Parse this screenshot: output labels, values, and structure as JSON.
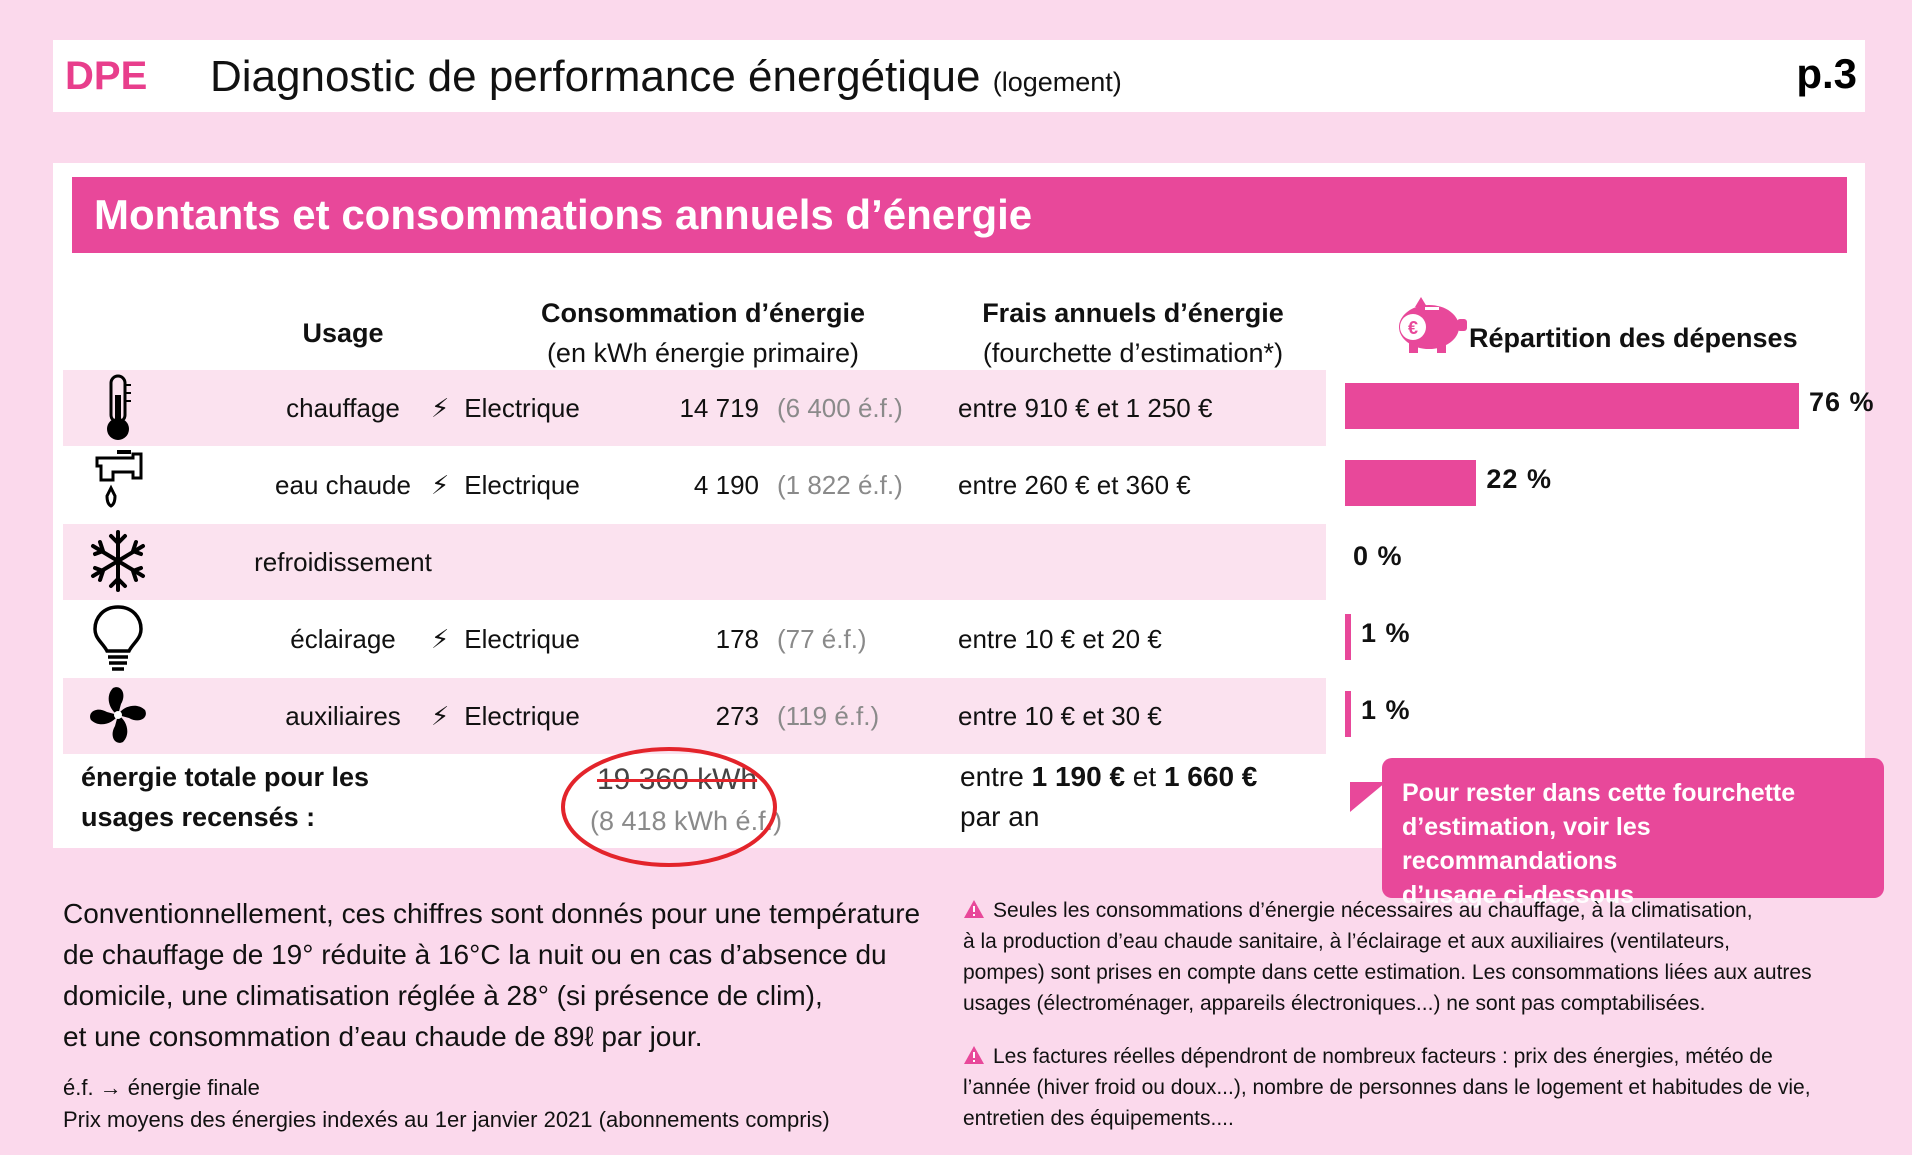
{
  "header": {
    "code": "DPE",
    "title": "Diagnostic de performance énergétique",
    "subtitle": "(logement)",
    "page": "p.3"
  },
  "banner": {
    "title": "Montants et consommations annuels d’énergie"
  },
  "columns": {
    "usage": "Usage",
    "conso_title": "Consommation d’énergie",
    "conso_sub": "(en kWh énergie primaire)",
    "frais_title": "Frais annuels d’énergie",
    "frais_sub": "(fourchette d’estimation*)",
    "repartition": "Répartition des dépenses"
  },
  "rows": [
    {
      "icon": "thermometer-icon",
      "usage": "chauffage",
      "energy": "Electrique",
      "kwh": "14 719",
      "ef": "(6 400 é.f.)",
      "frais": "entre 910 € et 1 250 €",
      "pct_label": "76 %",
      "pct": 76
    },
    {
      "icon": "faucet-icon",
      "usage": "eau chaude",
      "energy": "Electrique",
      "kwh": "4 190",
      "ef": "(1 822 é.f.)",
      "frais": "entre 260 € et 360 €",
      "pct_label": "22 %",
      "pct": 22
    },
    {
      "icon": "snowflake-icon",
      "usage": "refroidissement",
      "energy": "",
      "kwh": "",
      "ef": "",
      "frais": "",
      "pct_label": "0 %",
      "pct": 0
    },
    {
      "icon": "lightbulb-icon",
      "usage": "éclairage",
      "energy": "Electrique",
      "kwh": "178",
      "ef": "(77 é.f.)",
      "frais": "entre 10 € et 20 €",
      "pct_label": "1 %",
      "pct": 1
    },
    {
      "icon": "fan-icon",
      "usage": "auxiliaires",
      "energy": "Electrique",
      "kwh": "273",
      "ef": "(119 é.f.)",
      "frais": "entre 10 € et 30 €",
      "pct_label": "1 %",
      "pct": 1
    }
  ],
  "total": {
    "label_line1": "énergie totale pour les",
    "label_line2": "usages recensés :",
    "kwh": "19 360 kWh",
    "ef": "(8 418 kWh é.f.)",
    "frais_prefix": "entre ",
    "frais_low": "1 190 €",
    "frais_mid": " et ",
    "frais_high": "1 660 €",
    "frais_suffix": "par an"
  },
  "callout": {
    "line1": "Pour rester dans cette fourchette",
    "line2": "d’estimation, voir les recommandations",
    "line3": "d’usage ci-dessous"
  },
  "notes": {
    "left_1": "Conventionnellement, ces chiffres sont donnés pour une température",
    "left_2": "de chauffage de 19° réduite à 16°C la nuit ou en cas d’absence du",
    "left_3": "domicile, une climatisation réglée à 28° (si présence de clim),",
    "left_4": "et une consommation d’eau chaude de 89ℓ par jour.",
    "ef_def": "é.f. → énergie finale",
    "prix": "Prix moyens des énergies indexés au  1er janvier 2021 (abonnements compris)",
    "right1_1": "Seules les consommations d’énergie nécessaires au chauffage, à la climatisation,",
    "right1_2": "à la production d’eau chaude sanitaire, à l’éclairage et aux auxiliaires (ventilateurs,",
    "right1_3": "pompes) sont prises en compte dans cette estimation. Les consommations liées aux autres",
    "right1_4": "usages (électroménager, appareils électroniques...) ne sont pas comptabilisées.",
    "right2_1": "Les factures réelles dépendront de nombreux facteurs : prix des énergies, météo de",
    "right2_2": "l’année (hiver froid ou doux...), nombre de personnes dans le logement et habitudes de vie,",
    "right2_3": "entretien des équipements...."
  },
  "colors": {
    "accent": "#e8489a",
    "page_bg": "#fbd9ec",
    "row_bg": "#fbe2ef",
    "circle": "#e3242b"
  }
}
